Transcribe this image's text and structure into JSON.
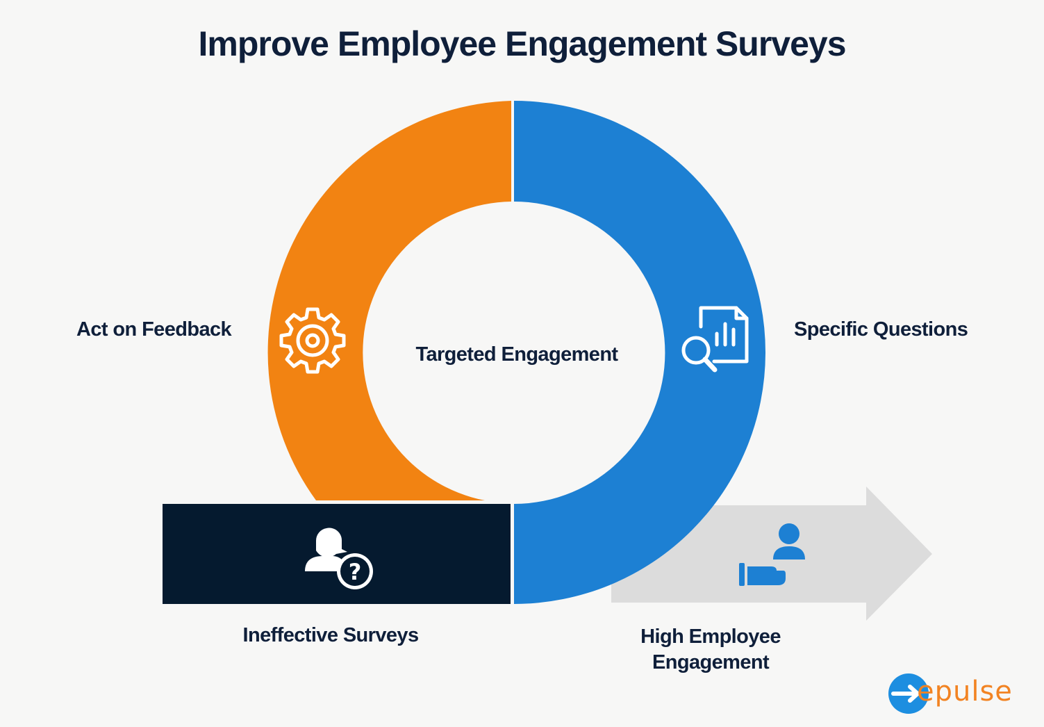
{
  "title": "Improve Employee Engagement Surveys",
  "labels": {
    "act_on_feedback": "Act on Feedback",
    "specific_questions": "Specific Questions",
    "targeted_engagement": "Targeted Engagement",
    "ineffective_surveys": "Ineffective Surveys",
    "high_employee_engagement": "High Employee Engagement"
  },
  "icons": {
    "orange_segment": "gear-icon",
    "blue_segment": "report-search-icon",
    "dark_bar": "person-question-icon",
    "arrow": "person-hand-icon"
  },
  "logo": {
    "text": "epulse"
  },
  "colors": {
    "orange": "#f28312",
    "blue": "#1d80d3",
    "navy": "#051a2f",
    "arrow_gray": "#dcdcdc",
    "title": "#0f1f3a"
  }
}
